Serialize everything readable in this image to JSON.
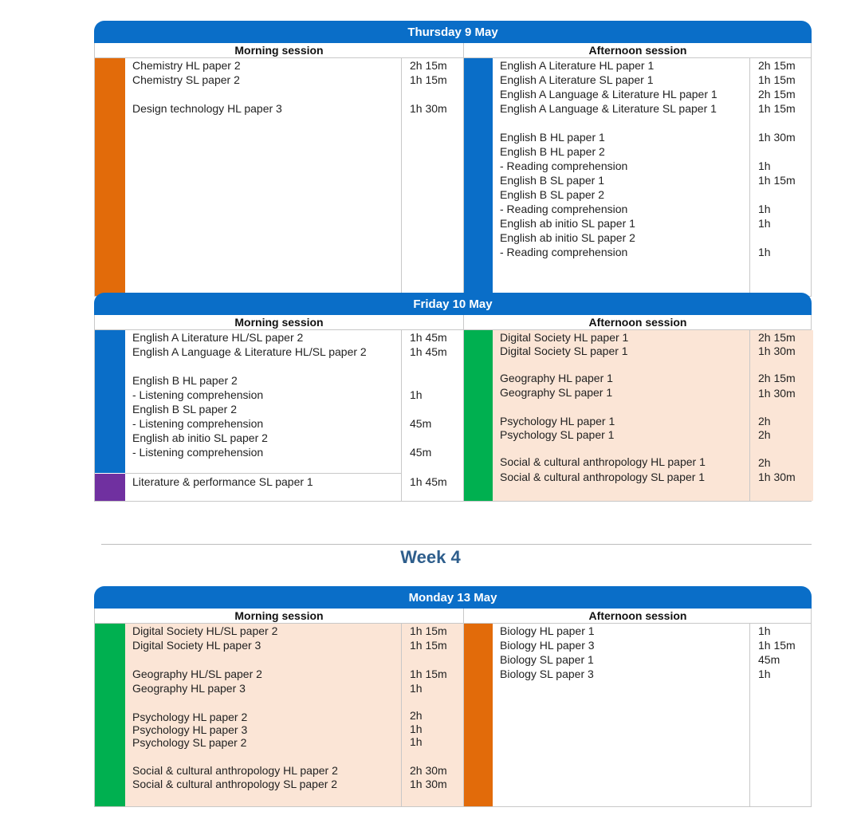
{
  "colors": {
    "header_blue": "#0a6ec8",
    "orange": "#e26b0a",
    "blue": "#0a6ec8",
    "green": "#00b050",
    "purple": "#7030a0",
    "peach": "#fbe5d6"
  },
  "labels": {
    "morning": "Morning session",
    "afternoon": "Afternoon session"
  },
  "week_heading": "Week 4",
  "days": [
    {
      "title": "Thursday 9 May",
      "morning": [
        "Chemistry HL paper 2",
        "Chemistry SL paper 2",
        "",
        "Design technology HL paper 3"
      ],
      "morning_dur": [
        "2h 15m",
        "1h 15m",
        "",
        "1h 30m"
      ],
      "afternoon": [
        "English A Literature HL paper 1",
        "English A Literature SL paper 1",
        "English A Language & Literature HL paper 1",
        "English A Language & Literature SL paper 1",
        "",
        "English B HL paper 1",
        "English B HL paper 2",
        "- Reading comprehension",
        "English B SL paper 1",
        "English B SL paper 2",
        "- Reading comprehension",
        "English ab initio SL paper 1",
        "English ab initio SL paper 2",
        "- Reading comprehension"
      ],
      "afternoon_dur": [
        "2h 15m",
        "1h 15m",
        "2h 15m",
        "1h 15m",
        "",
        "1h 30m",
        "",
        "1h",
        "1h 15m",
        "",
        "1h",
        "1h",
        "",
        "1h"
      ]
    },
    {
      "title": "Friday 10 May",
      "morning": [
        "English A Literature HL/SL paper 2",
        "English A Language & Literature HL/SL paper 2",
        "",
        "English B HL paper 2",
        "- Listening comprehension",
        "English B SL paper 2",
        "- Listening comprehension",
        "English ab initio SL paper 2",
        "- Listening comprehension",
        "Literature & performance SL paper 1"
      ],
      "morning_dur": [
        "1h 45m",
        "1h 45m",
        "",
        "",
        "1h",
        "",
        "45m",
        "",
        "45m",
        "1h 45m"
      ],
      "afternoon": [
        "Digital Society HL paper 1",
        "Digital Society SL paper 1",
        "",
        "Geography HL paper 1",
        "Geography SL paper 1",
        "",
        "Psychology HL paper 1",
        "Psychology SL paper 1",
        "",
        "Social & cultural anthropology HL paper 1",
        "Social & cultural anthropology SL paper 1"
      ],
      "afternoon_dur": [
        "2h 15m",
        "1h 30m",
        "",
        "2h 15m",
        "1h 30m",
        "",
        "2h",
        "2h",
        "",
        "2h",
        "1h 30m"
      ]
    },
    {
      "title": "Monday 13 May",
      "morning": [
        "Digital Society HL/SL paper 2",
        "Digital Society HL paper 3",
        "",
        "Geography HL/SL paper 2",
        "Geography HL paper 3",
        "",
        "Psychology HL paper 2",
        "Psychology HL paper 3",
        "Psychology SL paper 2",
        "",
        "Social & cultural anthropology HL paper 2",
        "Social & cultural anthropology SL paper 2"
      ],
      "morning_dur": [
        "1h 15m",
        "1h 15m",
        "",
        "1h 15m",
        "1h",
        "",
        "2h",
        "1h",
        "1h",
        "",
        "2h 30m",
        "1h 30m"
      ],
      "afternoon": [
        "Biology HL paper 1",
        "Biology HL paper 3",
        "Biology SL paper 1",
        "Biology SL paper 3"
      ],
      "afternoon_dur": [
        "1h",
        "1h 15m",
        "45m",
        "1h"
      ]
    }
  ]
}
